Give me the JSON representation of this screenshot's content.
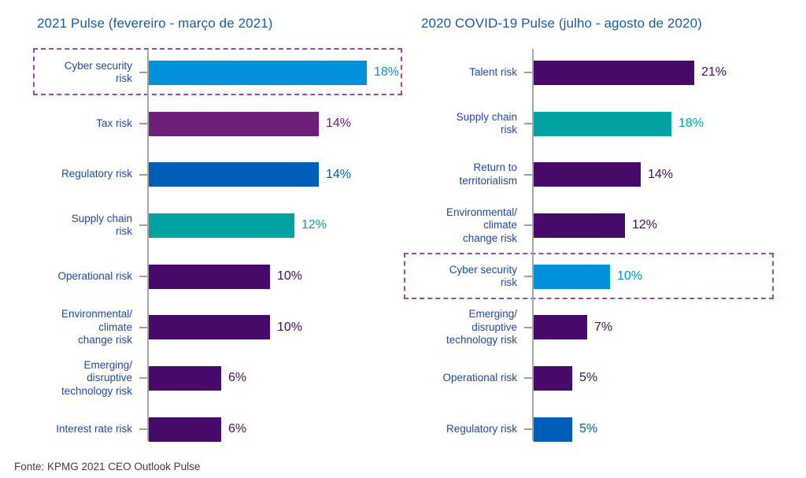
{
  "colors": {
    "title_blue": "#1A5CA8",
    "label_blue": "#1E4BA6",
    "axis_gray": "#A5A7AA",
    "tick_gray": "#9CA0A5",
    "footer_gray": "#3F3F3F",
    "highlight_dash_purple": "#9D4A9E",
    "light_blue": "#0091DA",
    "purple": "#6D2077",
    "blue": "#005EB8",
    "teal": "#00A3A1",
    "dark_purple": "#470A68"
  },
  "footer": {
    "source": "Fonte: KPMG 2021 CEO Outlook Pulse"
  },
  "chart_data": [
    {
      "type": "bar",
      "orientation": "horizontal",
      "title": "2021 Pulse (fevereiro - março de 2021)",
      "value_suffix": "%",
      "xlim": [
        0,
        20
      ],
      "grid": false,
      "legend": false,
      "highlighted_category": "Cyber security risk",
      "categories": [
        "Cyber security risk",
        "Tax risk",
        "Regulatory risk",
        "Supply chain risk",
        "Operational risk",
        "Environmental/climate change risk",
        "Emerging/disruptive technology risk",
        "Interest rate risk"
      ],
      "values": [
        18,
        14,
        14,
        12,
        10,
        10,
        6,
        6
      ],
      "rows": [
        {
          "category": "Cyber security risk",
          "label_lines": "Cyber security\nrisk",
          "value": 18,
          "color": "#0091DA",
          "highlighted": true
        },
        {
          "category": "Tax risk",
          "label_lines": "Tax risk",
          "value": 14,
          "color": "#6D2077",
          "highlighted": false
        },
        {
          "category": "Regulatory risk",
          "label_lines": "Regulatory risk",
          "value": 14,
          "color": "#005EB8",
          "highlighted": false
        },
        {
          "category": "Supply chain risk",
          "label_lines": "Supply chain\nrisk",
          "value": 12,
          "color": "#00A3A1",
          "highlighted": false
        },
        {
          "category": "Operational risk",
          "label_lines": "Operational risk",
          "value": 10,
          "color": "#470A68",
          "highlighted": false
        },
        {
          "category": "Environmental/climate change risk",
          "label_lines": "Environmental/\nclimate\nchange risk",
          "value": 10,
          "color": "#470A68",
          "highlighted": false
        },
        {
          "category": "Emerging/disruptive technology risk",
          "label_lines": "Emerging/\ndisruptive\ntechnology risk",
          "value": 6,
          "color": "#470A68",
          "highlighted": false
        },
        {
          "category": "Interest rate risk",
          "label_lines": "Interest rate risk",
          "value": 6,
          "color": "#470A68",
          "highlighted": false
        }
      ]
    },
    {
      "type": "bar",
      "orientation": "horizontal",
      "title": "2020 COVID-19 Pulse (julho - agosto de 2020)",
      "value_suffix": "%",
      "xlim": [
        0,
        22
      ],
      "grid": false,
      "legend": false,
      "highlighted_category": "Cyber security risk",
      "categories": [
        "Talent risk",
        "Supply chain risk",
        "Return to territorialism",
        "Environmental/climate change risk",
        "Cyber security risk",
        "Emerging/disruptive technology risk",
        "Operational risk",
        "Regulatory risk"
      ],
      "values": [
        21,
        18,
        14,
        12,
        10,
        7,
        5,
        5
      ],
      "rows": [
        {
          "category": "Talent risk",
          "label_lines": "Talent risk",
          "value": 21,
          "color": "#470A68",
          "highlighted": false
        },
        {
          "category": "Supply chain risk",
          "label_lines": "Supply chain\nrisk",
          "value": 18,
          "color": "#00A3A1",
          "highlighted": false
        },
        {
          "category": "Return to territorialism",
          "label_lines": "Return to\nterritorialism",
          "value": 14,
          "color": "#470A68",
          "highlighted": false
        },
        {
          "category": "Environmental/climate change risk",
          "label_lines": "Environmental/\nclimate\nchange risk",
          "value": 12,
          "color": "#470A68",
          "highlighted": false
        },
        {
          "category": "Cyber security risk",
          "label_lines": "Cyber security\nrisk",
          "value": 10,
          "color": "#0091DA",
          "highlighted": true
        },
        {
          "category": "Emerging/disruptive technology risk",
          "label_lines": "Emerging/\ndisruptive\ntechnology risk",
          "value": 7,
          "color": "#470A68",
          "highlighted": false
        },
        {
          "category": "Operational risk",
          "label_lines": "Operational risk",
          "value": 5,
          "color": "#470A68",
          "highlighted": false
        },
        {
          "category": "Regulatory risk",
          "label_lines": "Regulatory risk",
          "value": 5,
          "color": "#005EB8",
          "highlighted": false
        }
      ]
    }
  ]
}
